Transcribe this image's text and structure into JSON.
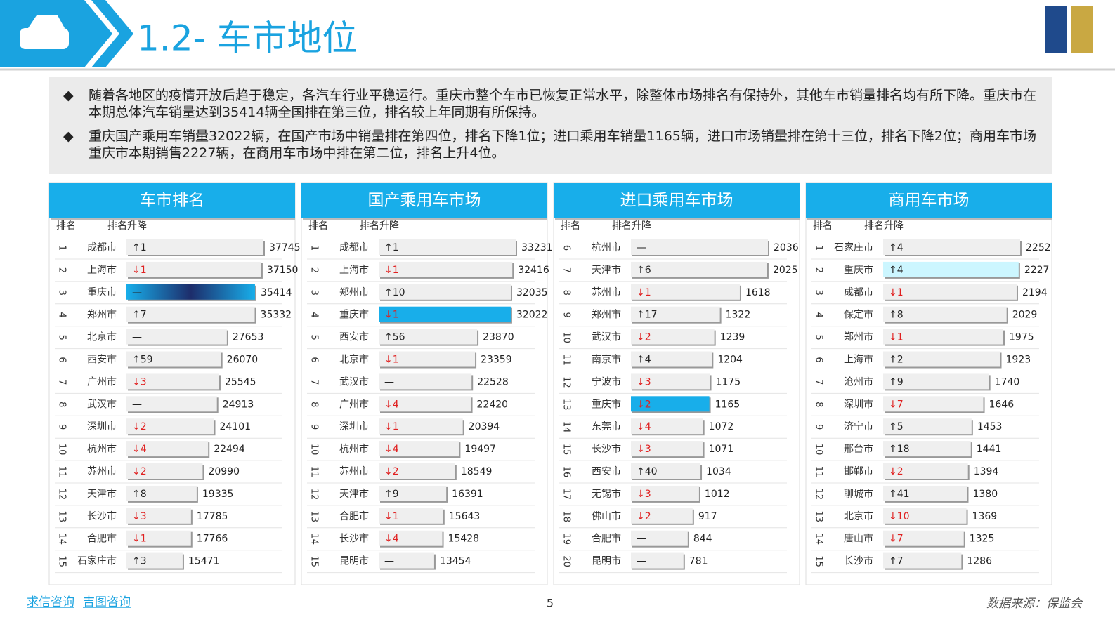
{
  "header": {
    "title": "1.2- 车市地位"
  },
  "bullets": [
    "随着各地区的疫情开放后趋于稳定，各汽车行业平稳运行。重庆市整个车市已恢复正常水平，除整体市场排名有保持外，其他车市销量排名均有所下降。重庆市在本期总体汽车销量达到35414辆全国排在第三位，排名较上年同期有所保持。",
    "重庆国产乘用车销量32022辆，在国产市场中销量排在第四位，排名下降1位；进口乘用车销量1165辆，进口市场销量排在第十三位，排名下降2位；商用车市场重庆市本期销售2227辆，在商用车市场中排在第二位，排名上升4位。"
  ],
  "panels": [
    {
      "title": "车市排名",
      "col_rank": "排名",
      "col_change": "排名升降",
      "highlight": {
        "row": 2,
        "color": "#1d2d6b"
      },
      "rows": [
        {
          "rank": 1,
          "city": "成都市",
          "change": "↑1",
          "value": 37745
        },
        {
          "rank": 2,
          "city": "上海市",
          "change": "↓1",
          "value": 37150
        },
        {
          "rank": 3,
          "city": "重庆市",
          "change": "—",
          "value": 35414
        },
        {
          "rank": 4,
          "city": "郑州市",
          "change": "↑7",
          "value": 35332
        },
        {
          "rank": 5,
          "city": "北京市",
          "change": "—",
          "value": 27653
        },
        {
          "rank": 6,
          "city": "西安市",
          "change": "↑59",
          "value": 26070
        },
        {
          "rank": 7,
          "city": "广州市",
          "change": "↓3",
          "value": 25545
        },
        {
          "rank": 8,
          "city": "武汉市",
          "change": "—",
          "value": 24913
        },
        {
          "rank": 9,
          "city": "深圳市",
          "change": "↓2",
          "value": 24101
        },
        {
          "rank": 10,
          "city": "杭州市",
          "change": "↓4",
          "value": 22494
        },
        {
          "rank": 11,
          "city": "苏州市",
          "change": "↓2",
          "value": 20990
        },
        {
          "rank": 12,
          "city": "天津市",
          "change": "↑8",
          "value": 19335
        },
        {
          "rank": 13,
          "city": "长沙市",
          "change": "↓3",
          "value": 17785
        },
        {
          "rank": 14,
          "city": "合肥市",
          "change": "↓1",
          "value": 17766
        },
        {
          "rank": 15,
          "city": "石家庄市",
          "change": "↑3",
          "value": 15471
        }
      ]
    },
    {
      "title": "国产乘用车市场",
      "col_rank": "排名",
      "col_change": "排名升降",
      "highlight": {
        "row": 3,
        "color": "#18aeea"
      },
      "rows": [
        {
          "rank": 1,
          "city": "成都市",
          "change": "↑1",
          "value": 33231
        },
        {
          "rank": 2,
          "city": "上海市",
          "change": "↓1",
          "value": 32416
        },
        {
          "rank": 3,
          "city": "郑州市",
          "change": "↑10",
          "value": 32035
        },
        {
          "rank": 4,
          "city": "重庆市",
          "change": "↓1",
          "value": 32022
        },
        {
          "rank": 5,
          "city": "西安市",
          "change": "↑56",
          "value": 23870
        },
        {
          "rank": 6,
          "city": "北京市",
          "change": "↓1",
          "value": 23359
        },
        {
          "rank": 7,
          "city": "武汉市",
          "change": "—",
          "value": 22528
        },
        {
          "rank": 8,
          "city": "广州市",
          "change": "↓4",
          "value": 22420
        },
        {
          "rank": 9,
          "city": "深圳市",
          "change": "↓1",
          "value": 20394
        },
        {
          "rank": 10,
          "city": "杭州市",
          "change": "↓4",
          "value": 19497
        },
        {
          "rank": 11,
          "city": "苏州市",
          "change": "↓2",
          "value": 18549
        },
        {
          "rank": 12,
          "city": "天津市",
          "change": "↑9",
          "value": 16391
        },
        {
          "rank": 13,
          "city": "合肥市",
          "change": "↓1",
          "value": 15643
        },
        {
          "rank": 14,
          "city": "长沙市",
          "change": "↓4",
          "value": 15428
        },
        {
          "rank": 15,
          "city": "昆明市",
          "change": "—",
          "value": 13454
        }
      ]
    },
    {
      "title": "进口乘用车市场",
      "col_rank": "排名",
      "col_change": "排名升降",
      "highlight": {
        "row": 7,
        "color": "#18aeea"
      },
      "rows": [
        {
          "rank": 6,
          "city": "杭州市",
          "change": "—",
          "value": 2036
        },
        {
          "rank": 7,
          "city": "天津市",
          "change": "↑6",
          "value": 2025
        },
        {
          "rank": 8,
          "city": "苏州市",
          "change": "↓1",
          "value": 1618
        },
        {
          "rank": 9,
          "city": "郑州市",
          "change": "↑17",
          "value": 1322
        },
        {
          "rank": 10,
          "city": "武汉市",
          "change": "↓2",
          "value": 1239
        },
        {
          "rank": 11,
          "city": "南京市",
          "change": "↑4",
          "value": 1204
        },
        {
          "rank": 12,
          "city": "宁波市",
          "change": "↓3",
          "value": 1175
        },
        {
          "rank": 13,
          "city": "重庆市",
          "change": "↓2",
          "value": 1165
        },
        {
          "rank": 14,
          "city": "东莞市",
          "change": "↓4",
          "value": 1072
        },
        {
          "rank": 15,
          "city": "长沙市",
          "change": "↓3",
          "value": 1071
        },
        {
          "rank": 16,
          "city": "西安市",
          "change": "↑40",
          "value": 1034
        },
        {
          "rank": 17,
          "city": "无锡市",
          "change": "↓3",
          "value": 1012
        },
        {
          "rank": 18,
          "city": "佛山市",
          "change": "↓2",
          "value": 917
        },
        {
          "rank": 19,
          "city": "合肥市",
          "change": "—",
          "value": 844
        },
        {
          "rank": 20,
          "city": "昆明市",
          "change": "—",
          "value": 781
        }
      ]
    },
    {
      "title": "商用车市场",
      "col_rank": "排名",
      "col_change": "排名升降",
      "highlight": {
        "row": 1,
        "color": "#ccf6ff"
      },
      "rows": [
        {
          "rank": 1,
          "city": "石家庄市",
          "change": "↑4",
          "value": 2252
        },
        {
          "rank": 2,
          "city": "重庆市",
          "change": "↑4",
          "value": 2227
        },
        {
          "rank": 3,
          "city": "成都市",
          "change": "↓1",
          "value": 2194
        },
        {
          "rank": 4,
          "city": "保定市",
          "change": "↑8",
          "value": 2029
        },
        {
          "rank": 5,
          "city": "郑州市",
          "change": "↓1",
          "value": 1975
        },
        {
          "rank": 6,
          "city": "上海市",
          "change": "↑2",
          "value": 1923
        },
        {
          "rank": 7,
          "city": "沧州市",
          "change": "↑9",
          "value": 1740
        },
        {
          "rank": 8,
          "city": "深圳市",
          "change": "↓7",
          "value": 1646
        },
        {
          "rank": 9,
          "city": "济宁市",
          "change": "↑5",
          "value": 1453
        },
        {
          "rank": 10,
          "city": "邢台市",
          "change": "↑18",
          "value": 1441
        },
        {
          "rank": 11,
          "city": "邯郸市",
          "change": "↓2",
          "value": 1394
        },
        {
          "rank": 12,
          "city": "聊城市",
          "change": "↑41",
          "value": 1380
        },
        {
          "rank": 13,
          "city": "北京市",
          "change": "↓10",
          "value": 1369
        },
        {
          "rank": 14,
          "city": "唐山市",
          "change": "↓7",
          "value": 1325
        },
        {
          "rank": 15,
          "city": "长沙市",
          "change": "↑7",
          "value": 1286
        }
      ]
    }
  ],
  "footer": {
    "links": [
      "求信咨询",
      "吉图咨询"
    ],
    "page": "5",
    "source": "数据来源：保监会"
  }
}
